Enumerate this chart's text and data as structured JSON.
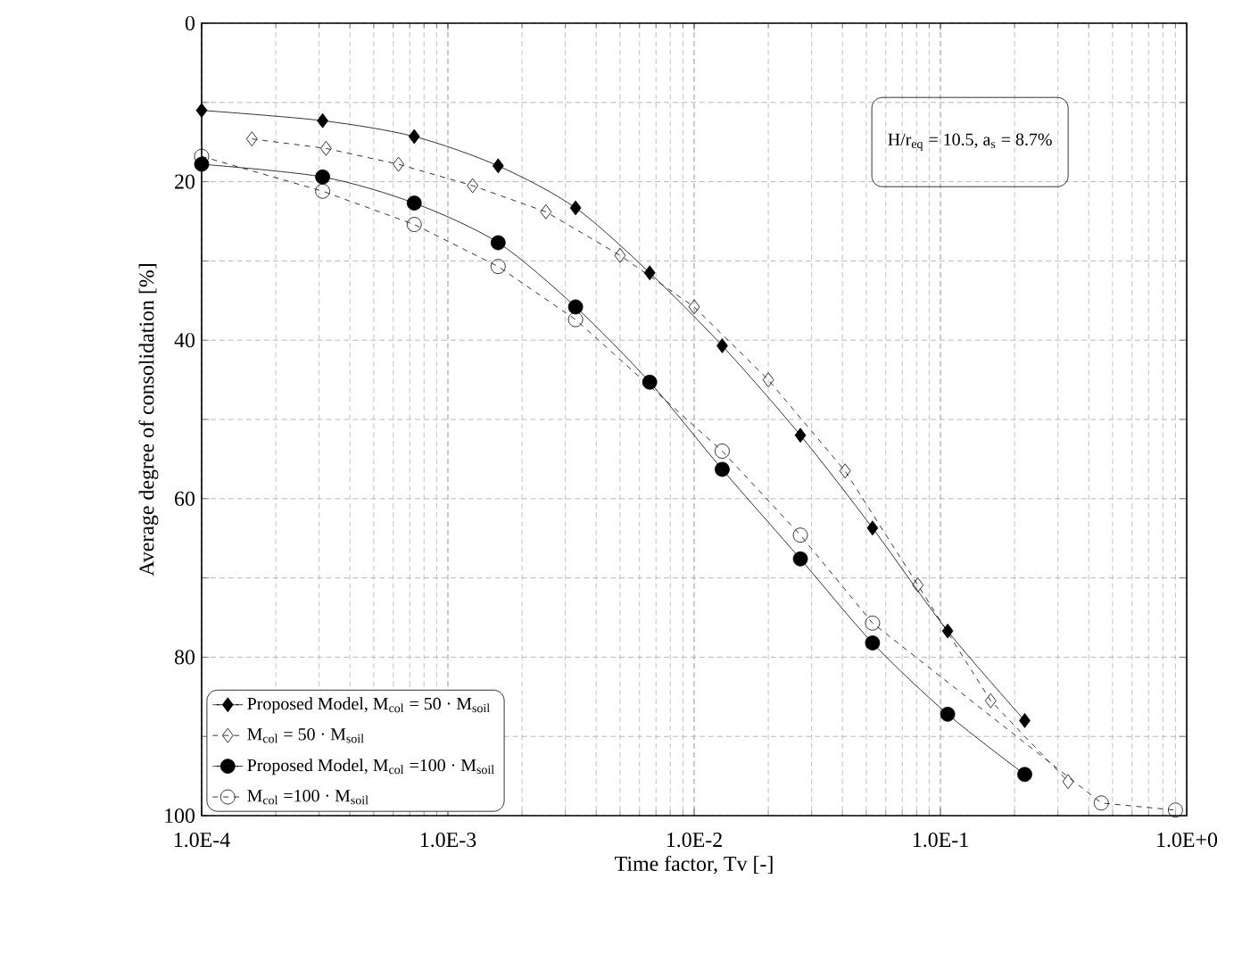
{
  "chart_data": {
    "type": "line",
    "xlabel": "Time factor, Tv [-]",
    "ylabel": "Average degree of consolidation [%]",
    "log": "x",
    "grid": true,
    "legend": "bottom left",
    "xlim": [
      0.0001,
      1
    ],
    "ylim": [
      100,
      0
    ],
    "xticks": [
      {
        "value": 0.0001,
        "label": "1.0E-4"
      },
      {
        "value": 0.001,
        "label": "1.0E-3"
      },
      {
        "value": 0.01,
        "label": "1.0E-2"
      },
      {
        "value": 0.1,
        "label": "1.0E-1"
      },
      {
        "value": 1,
        "label": "1.0E+0"
      }
    ],
    "yticks": [
      0,
      {
        "value": 10,
        "label": null
      },
      20,
      {
        "value": 30,
        "label": null
      },
      40,
      {
        "value": 50,
        "label": null
      },
      60,
      {
        "value": 70,
        "label": null
      },
      80,
      {
        "value": 90,
        "label": null
      },
      100
    ],
    "annotations": [
      "H/r$_{eq}$ = 10.5, a$_{s}$ = 8.7%"
    ],
    "series": [
      {
        "name": "Proposed Model, M$_{col}$ = 50 · M$_{soil}$",
        "color": "#000000",
        "marker": "diamond",
        "line_style": "solid",
        "x": [
          0.0001,
          0.00031,
          0.00073,
          0.0016,
          0.0033,
          0.0066,
          0.013,
          0.027,
          0.053,
          0.107,
          0.22
        ],
        "values": [
          11.0,
          12.3,
          14.3,
          18.0,
          23.3,
          31.5,
          40.7,
          52.0,
          63.7,
          76.7,
          88.0
        ]
      },
      {
        "name": "M$_{col}$ = 50 · M$_{soil}$",
        "color": "#000000",
        "marker": "diamond",
        "line_style": "dashed",
        "x": [
          0.00016,
          0.00032,
          0.00063,
          0.00126,
          0.0025,
          0.005,
          0.01,
          0.02,
          0.041,
          0.081,
          0.16,
          0.33
        ],
        "values": [
          14.6,
          15.8,
          17.8,
          20.5,
          23.8,
          29.3,
          35.8,
          45.0,
          56.5,
          70.9,
          85.5,
          95.7
        ]
      },
      {
        "name": "Proposed Model, M$_{col}$ =100 · M$_{soil}$",
        "color": "#000000",
        "marker": "circle",
        "line_style": "solid",
        "x": [
          0.0001,
          0.00031,
          0.00073,
          0.0016,
          0.0033,
          0.0066,
          0.013,
          0.027,
          0.053,
          0.107,
          0.22
        ],
        "values": [
          17.8,
          19.4,
          22.7,
          27.7,
          35.8,
          45.3,
          56.3,
          67.6,
          78.2,
          87.2,
          94.8
        ]
      },
      {
        "name": "M$_{col}$ =100 · M$_{soil}$",
        "color": "#000000",
        "marker": "circle",
        "line_style": "dashed",
        "x": [
          0.0001,
          0.00031,
          0.00073,
          0.0016,
          0.0033,
          0.013,
          0.027,
          0.053,
          0.45,
          0.9
        ],
        "values": [
          16.8,
          21.2,
          25.4,
          30.7,
          37.4,
          54.0,
          64.6,
          75.7,
          98.4,
          99.3
        ]
      }
    ]
  }
}
